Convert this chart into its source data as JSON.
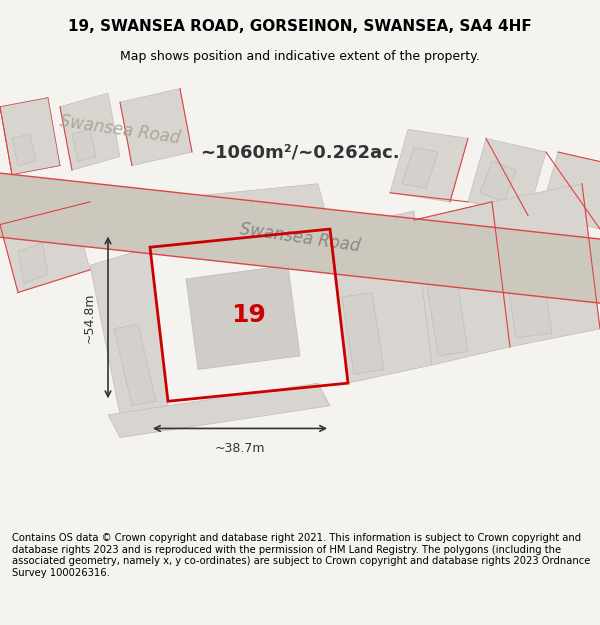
{
  "title_line1": "19, SWANSEA ROAD, GORSEINON, SWANSEA, SA4 4HF",
  "title_line2": "Map shows position and indicative extent of the property.",
  "footer_text": "Contains OS data © Crown copyright and database right 2021. This information is subject to Crown copyright and database rights 2023 and is reproduced with the permission of HM Land Registry. The polygons (including the associated geometry, namely x, y co-ordinates) are subject to Crown copyright and database rights 2023 Ordnance Survey 100026316.",
  "area_text": "~1060m²/~0.262ac.",
  "road_label": "Swansea Road",
  "property_number": "19",
  "width_label": "~38.7m",
  "height_label": "~54.8m",
  "bg_color": "#f0eeeb",
  "map_bg": "#e8e4de",
  "road_color": "#c8c0b0",
  "plot_fill": "none",
  "plot_edge_color": "#cc0000",
  "building_fill": "#d0ccc8",
  "road_line_color": "#cc3333",
  "title_fontsize": 11,
  "subtitle_fontsize": 9.5,
  "footer_fontsize": 7.5
}
